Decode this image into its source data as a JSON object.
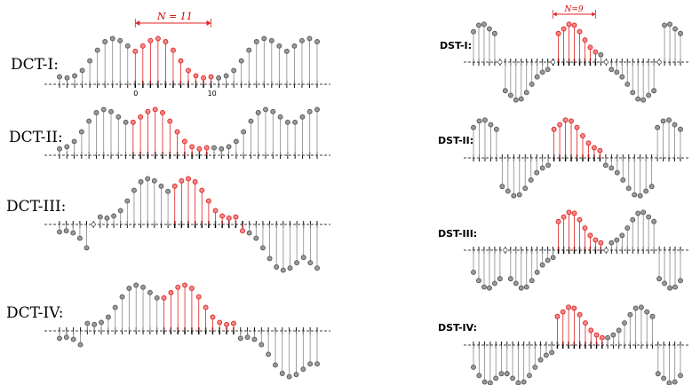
{
  "colors": {
    "sample": "#555555",
    "sample_fill": "#9a9a9a",
    "highlight": "#e02020",
    "highlight_fill": "#f28a8a",
    "stem": "#888888",
    "axis": "#000000"
  },
  "dct_panels": [
    {
      "id": "dct-1",
      "label": "DCT-I:"
    },
    {
      "id": "dct-2",
      "label": "DCT-II:"
    },
    {
      "id": "dct-3",
      "label": "DCT-III:"
    },
    {
      "id": "dct-4",
      "label": "DCT-IV:"
    }
  ],
  "dst_panels": [
    {
      "id": "dst-1",
      "label": "DST-I:"
    },
    {
      "id": "dst-2",
      "label": "DST-II:"
    },
    {
      "id": "dst-3",
      "label": "DST-III:"
    },
    {
      "id": "dst-4",
      "label": "DST-IV:"
    }
  ],
  "dct_span_label": "N = 11",
  "dst_span_label": "N=9",
  "dct_tick_labels": [
    "0",
    "10"
  ],
  "source_sequence": [
    0.62,
    0.72,
    0.82,
    0.86,
    0.8,
    0.64,
    0.44,
    0.26,
    0.16,
    0.12,
    0.14
  ]
}
